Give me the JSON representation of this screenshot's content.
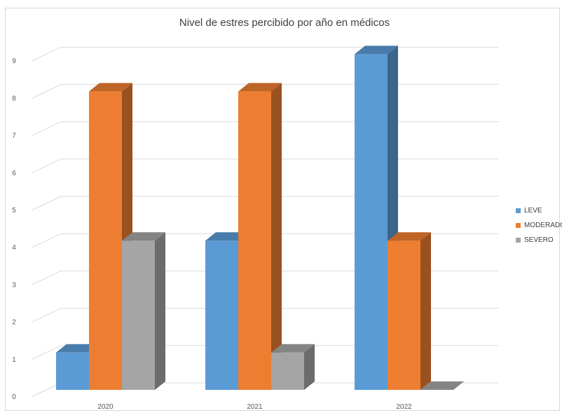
{
  "chart_data": {
    "type": "bar",
    "title": "Nivel de estres percibido por año en médicos",
    "categories": [
      "2020",
      "2021",
      "2022"
    ],
    "series": [
      {
        "name": "LEVE",
        "values": [
          1,
          4,
          9
        ],
        "color": "#5b9bd5"
      },
      {
        "name": "MODERADO",
        "values": [
          8,
          8,
          4
        ],
        "color": "#ed7d31"
      },
      {
        "name": "SEVERO",
        "values": [
          4,
          1,
          0
        ],
        "color": "#a5a5a5"
      }
    ],
    "yticks": [
      "0",
      "1",
      "2",
      "3",
      "4",
      "5",
      "6",
      "7",
      "8",
      "9"
    ],
    "ylim": [
      0,
      9
    ],
    "grid": true,
    "legend_position": "right",
    "three_d": true
  }
}
